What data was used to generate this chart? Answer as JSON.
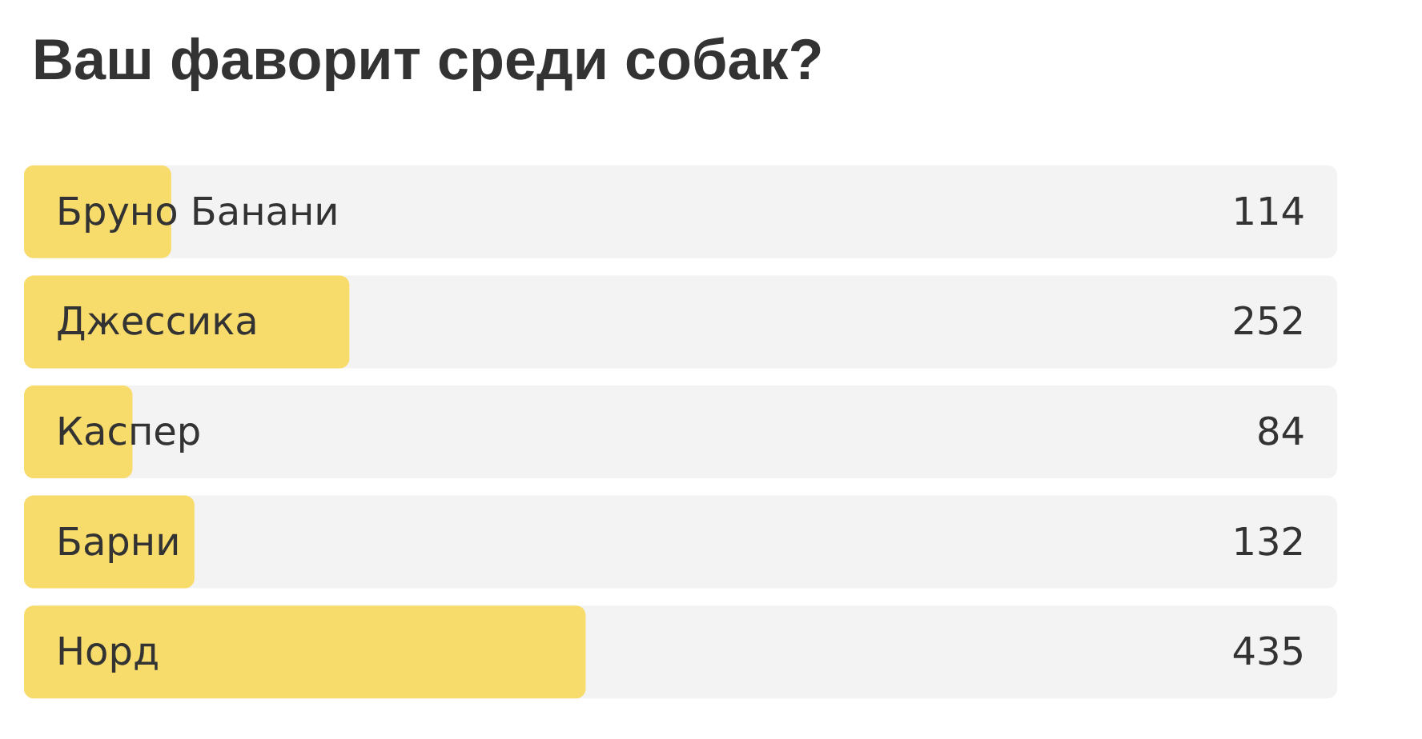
{
  "chart_data": {
    "type": "bar",
    "orientation": "horizontal",
    "title": "Ваш фаворит среди собак?",
    "categories": [
      "Бруно Банани",
      "Джессика",
      "Каспер",
      "Барни",
      "Норд"
    ],
    "values": [
      114,
      252,
      84,
      132,
      435
    ],
    "color": "#f8dc6b",
    "xlim": [
      0,
      1017
    ],
    "tick_labels": "y",
    "data_labels": true
  }
}
